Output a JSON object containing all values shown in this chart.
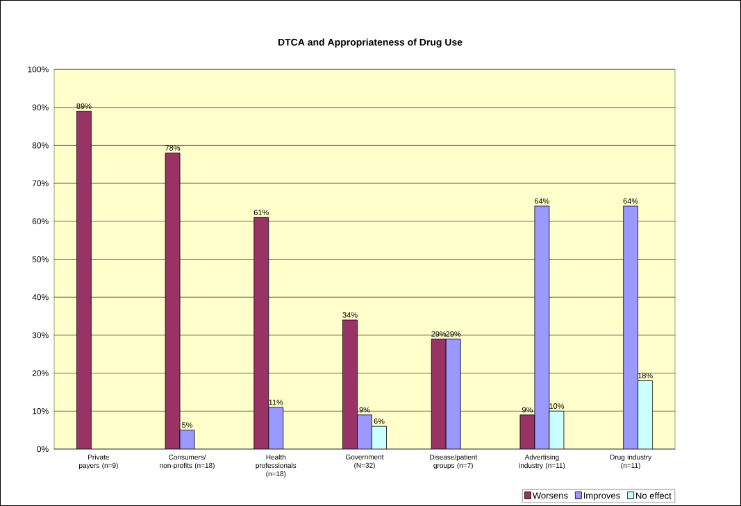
{
  "chart_data": {
    "type": "bar",
    "title": "DTCA and Appropriateness of Drug Use",
    "categories": [
      "Private payers (n=9)",
      "Consumers/ non-profits (n=18)",
      "Health professionals (n=18)",
      "Government (N=32)",
      "Disease/patient groups (n=7)",
      "Advertising industry (n=11)",
      "Drug industry (n=11)"
    ],
    "series": [
      {
        "name": "Worsens",
        "color": "#993366",
        "values": [
          89,
          78,
          61,
          34,
          29,
          9,
          null
        ],
        "value_labels": [
          "89%",
          "78%",
          "61%",
          "34%",
          "29%",
          "9%",
          null
        ]
      },
      {
        "name": "Improves",
        "color": "#9999ff",
        "values": [
          null,
          5,
          11,
          9,
          29,
          64,
          64
        ],
        "value_labels": [
          null,
          "5%",
          "11%",
          "9%",
          "29%",
          "64%",
          "64%"
        ]
      },
      {
        "name": "No effect",
        "color": "#ccffff",
        "values": [
          null,
          null,
          null,
          6,
          null,
          10,
          18
        ],
        "value_labels": [
          null,
          null,
          null,
          "6%",
          null,
          "10%",
          "18%"
        ]
      }
    ],
    "ylim": [
      0,
      100
    ],
    "yticks": [
      {
        "value": 0,
        "label": "0%"
      },
      {
        "value": 10,
        "label": "10%"
      },
      {
        "value": 20,
        "label": "20%"
      },
      {
        "value": 30,
        "label": "30%"
      },
      {
        "value": 40,
        "label": "40%"
      },
      {
        "value": 50,
        "label": "50%"
      },
      {
        "value": 60,
        "label": "60%"
      },
      {
        "value": 70,
        "label": "70%"
      },
      {
        "value": 80,
        "label": "80%"
      },
      {
        "value": 90,
        "label": "90%"
      },
      {
        "value": 100,
        "label": "100%"
      }
    ],
    "grid": "y",
    "legend": "bottom right"
  }
}
